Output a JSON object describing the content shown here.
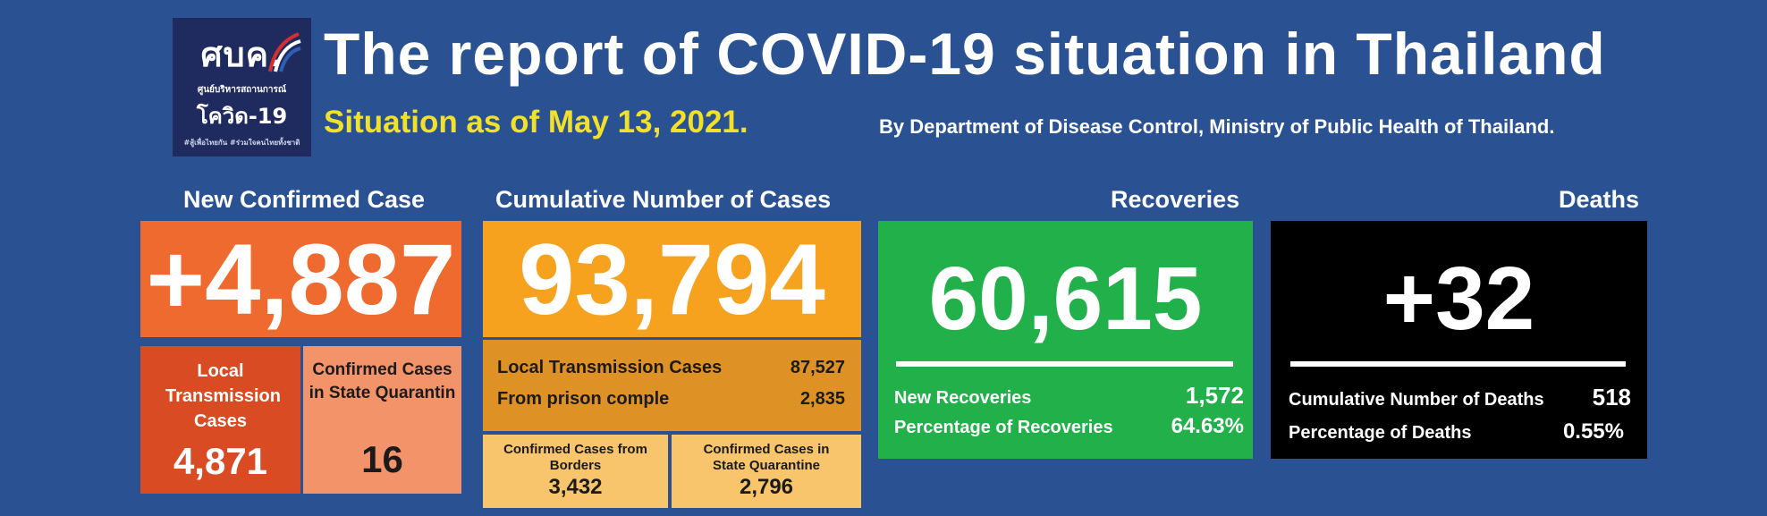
{
  "logo": {
    "main": "ศบค.",
    "sub": "ศูนย์บริหารสถานการณ์",
    "mid": "โควิด-19",
    "tag": "#สู้เพื่อไทยกัน #ร่วมใจคนไทยทั้งชาติ"
  },
  "header": {
    "title": "The report of COVID-19 situation in Thailand",
    "subtitle": "Situation as of May 13, 2021.",
    "byline": "By Department of Disease Control, Ministry of Public Health of Thailand."
  },
  "new_confirmed": {
    "heading": "New Confirmed Case",
    "value": "+4,887",
    "local_label": "Local Transmission Cases",
    "local_value": "4,871",
    "sq_label": "Confirmed Cases in State Quarantin",
    "sq_value": "16"
  },
  "cumulative": {
    "heading": "Cumulative Number of Cases",
    "value": "93,794",
    "local_label": "Local Transmission Cases",
    "local_value": "87,527",
    "prison_label": "From prison comple",
    "prison_value": "2,835",
    "borders_label": "Confirmed Cases from Borders",
    "borders_value": "3,432",
    "sq_label": "Confirmed Cases in State Quarantine",
    "sq_value": "2,796"
  },
  "recoveries": {
    "heading": "Recoveries",
    "value": "60,615",
    "new_label": "New Recoveries",
    "new_value": "1,572",
    "pct_label": "Percentage of Recoveries",
    "pct_value": "64.63%"
  },
  "deaths": {
    "heading": "Deaths",
    "value": "+32",
    "cum_label": "Cumulative Number of Deaths",
    "cum_value": "518",
    "pct_label": "Percentage of Deaths",
    "pct_value": "0.55%"
  },
  "colors": {
    "background": "#2a5192",
    "new_main": "#ee6a2e",
    "cumulative_main": "#f6a21f",
    "recoveries": "#22b04b",
    "deaths": "#000000",
    "subtitle": "#f2e12b"
  }
}
